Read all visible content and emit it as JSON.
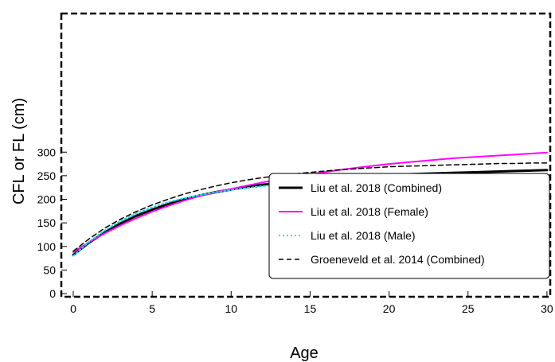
{
  "chart_data": {
    "type": "line",
    "title": "",
    "xlabel": "Age",
    "ylabel": "CFL or FL (cm)",
    "xlim": [
      0,
      30
    ],
    "ylim": [
      0,
      310
    ],
    "x_ticks": [
      0,
      5,
      10,
      15,
      20,
      25,
      30
    ],
    "y_ticks": [
      0,
      50,
      100,
      150,
      200,
      250,
      300
    ],
    "grid": false,
    "legend_position": "lower-right",
    "x": [
      0,
      1,
      2,
      3,
      4,
      5,
      6,
      7,
      8,
      9,
      10,
      11,
      12,
      13,
      14,
      15,
      16,
      17,
      18,
      19,
      20,
      21,
      22,
      23,
      24,
      25,
      26,
      27,
      28,
      29,
      30
    ],
    "series": [
      {
        "name": "Liu et al. 2018 (Combined)",
        "color": "#000000",
        "style": "solid-thick",
        "values": [
          82,
          108,
          130,
          149,
          165,
          178,
          190,
          200,
          208,
          215,
          221,
          226,
          231,
          235,
          238,
          241,
          243,
          246,
          248,
          250,
          251,
          253,
          254,
          255,
          256,
          257,
          258,
          259,
          260,
          261,
          262
        ]
      },
      {
        "name": "Liu et al. 2018 (Female)",
        "color": "#ff00ff",
        "style": "solid",
        "values": [
          88,
          109,
          128,
          145,
          160,
          174,
          186,
          197,
          207,
          215,
          222,
          229,
          236,
          242,
          248,
          253,
          258,
          263,
          267,
          271,
          275,
          278,
          281,
          284,
          287,
          289,
          291,
          293,
          295,
          297,
          299
        ]
      },
      {
        "name": "Liu et al. 2018 (Male)",
        "color": "#00e5ee",
        "style": "dotted",
        "values": [
          80,
          110,
          134,
          154,
          170,
          183,
          194,
          202,
          209,
          215,
          220,
          224,
          228,
          231,
          234,
          236,
          238,
          240,
          241,
          242,
          243,
          244,
          245,
          246,
          246,
          247,
          247,
          248,
          248,
          249,
          249
        ]
      },
      {
        "name": "Groeneveld et al. 2014 (Combined)",
        "color": "#000000",
        "style": "dashed",
        "values": [
          90,
          116,
          139,
          158,
          174,
          188,
          200,
          211,
          220,
          228,
          235,
          241,
          246,
          250,
          254,
          257,
          260,
          263,
          265,
          267,
          269,
          270,
          271,
          272,
          273,
          274,
          275,
          276,
          276,
          277,
          277
        ]
      }
    ]
  }
}
